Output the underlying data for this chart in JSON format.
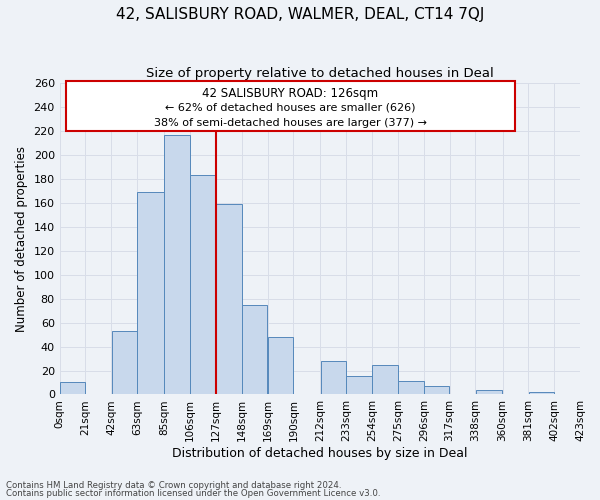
{
  "title_line1": "42, SALISBURY ROAD, WALMER, DEAL, CT14 7QJ",
  "title_line2": "Size of property relative to detached houses in Deal",
  "xlabel": "Distribution of detached houses by size in Deal",
  "ylabel": "Number of detached properties",
  "bar_left_edges": [
    0,
    21,
    42,
    63,
    85,
    106,
    127,
    148,
    169,
    190,
    212,
    233,
    254,
    275,
    296,
    317,
    338,
    360,
    381,
    402
  ],
  "bar_widths": [
    21,
    21,
    21,
    22,
    21,
    21,
    21,
    21,
    21,
    22,
    21,
    21,
    21,
    21,
    21,
    21,
    22,
    21,
    21,
    21
  ],
  "bar_heights": [
    10,
    0,
    53,
    169,
    217,
    183,
    159,
    75,
    48,
    0,
    28,
    15,
    25,
    11,
    7,
    0,
    4,
    0,
    2,
    0
  ],
  "bar_color": "#c8d8ec",
  "bar_edge_color": "#5588bb",
  "highlight_x": 127,
  "highlight_color": "#cc0000",
  "xlim": [
    0,
    423
  ],
  "ylim": [
    0,
    260
  ],
  "yticks": [
    0,
    20,
    40,
    60,
    80,
    100,
    120,
    140,
    160,
    180,
    200,
    220,
    240,
    260
  ],
  "xtick_labels": [
    "0sqm",
    "21sqm",
    "42sqm",
    "63sqm",
    "85sqm",
    "106sqm",
    "127sqm",
    "148sqm",
    "169sqm",
    "190sqm",
    "212sqm",
    "233sqm",
    "254sqm",
    "275sqm",
    "296sqm",
    "317sqm",
    "338sqm",
    "360sqm",
    "381sqm",
    "402sqm",
    "423sqm"
  ],
  "xtick_positions": [
    0,
    21,
    42,
    63,
    85,
    106,
    127,
    148,
    169,
    190,
    212,
    233,
    254,
    275,
    296,
    317,
    338,
    360,
    381,
    402,
    423
  ],
  "annotation_title": "42 SALISBURY ROAD: 126sqm",
  "annotation_line2": "← 62% of detached houses are smaller (626)",
  "annotation_line3": "38% of semi-detached houses are larger (377) →",
  "footnote1": "Contains HM Land Registry data © Crown copyright and database right 2024.",
  "footnote2": "Contains public sector information licensed under the Open Government Licence v3.0.",
  "background_color": "#eef2f7",
  "grid_color": "#d8dde8",
  "fig_width": 6.0,
  "fig_height": 5.0
}
